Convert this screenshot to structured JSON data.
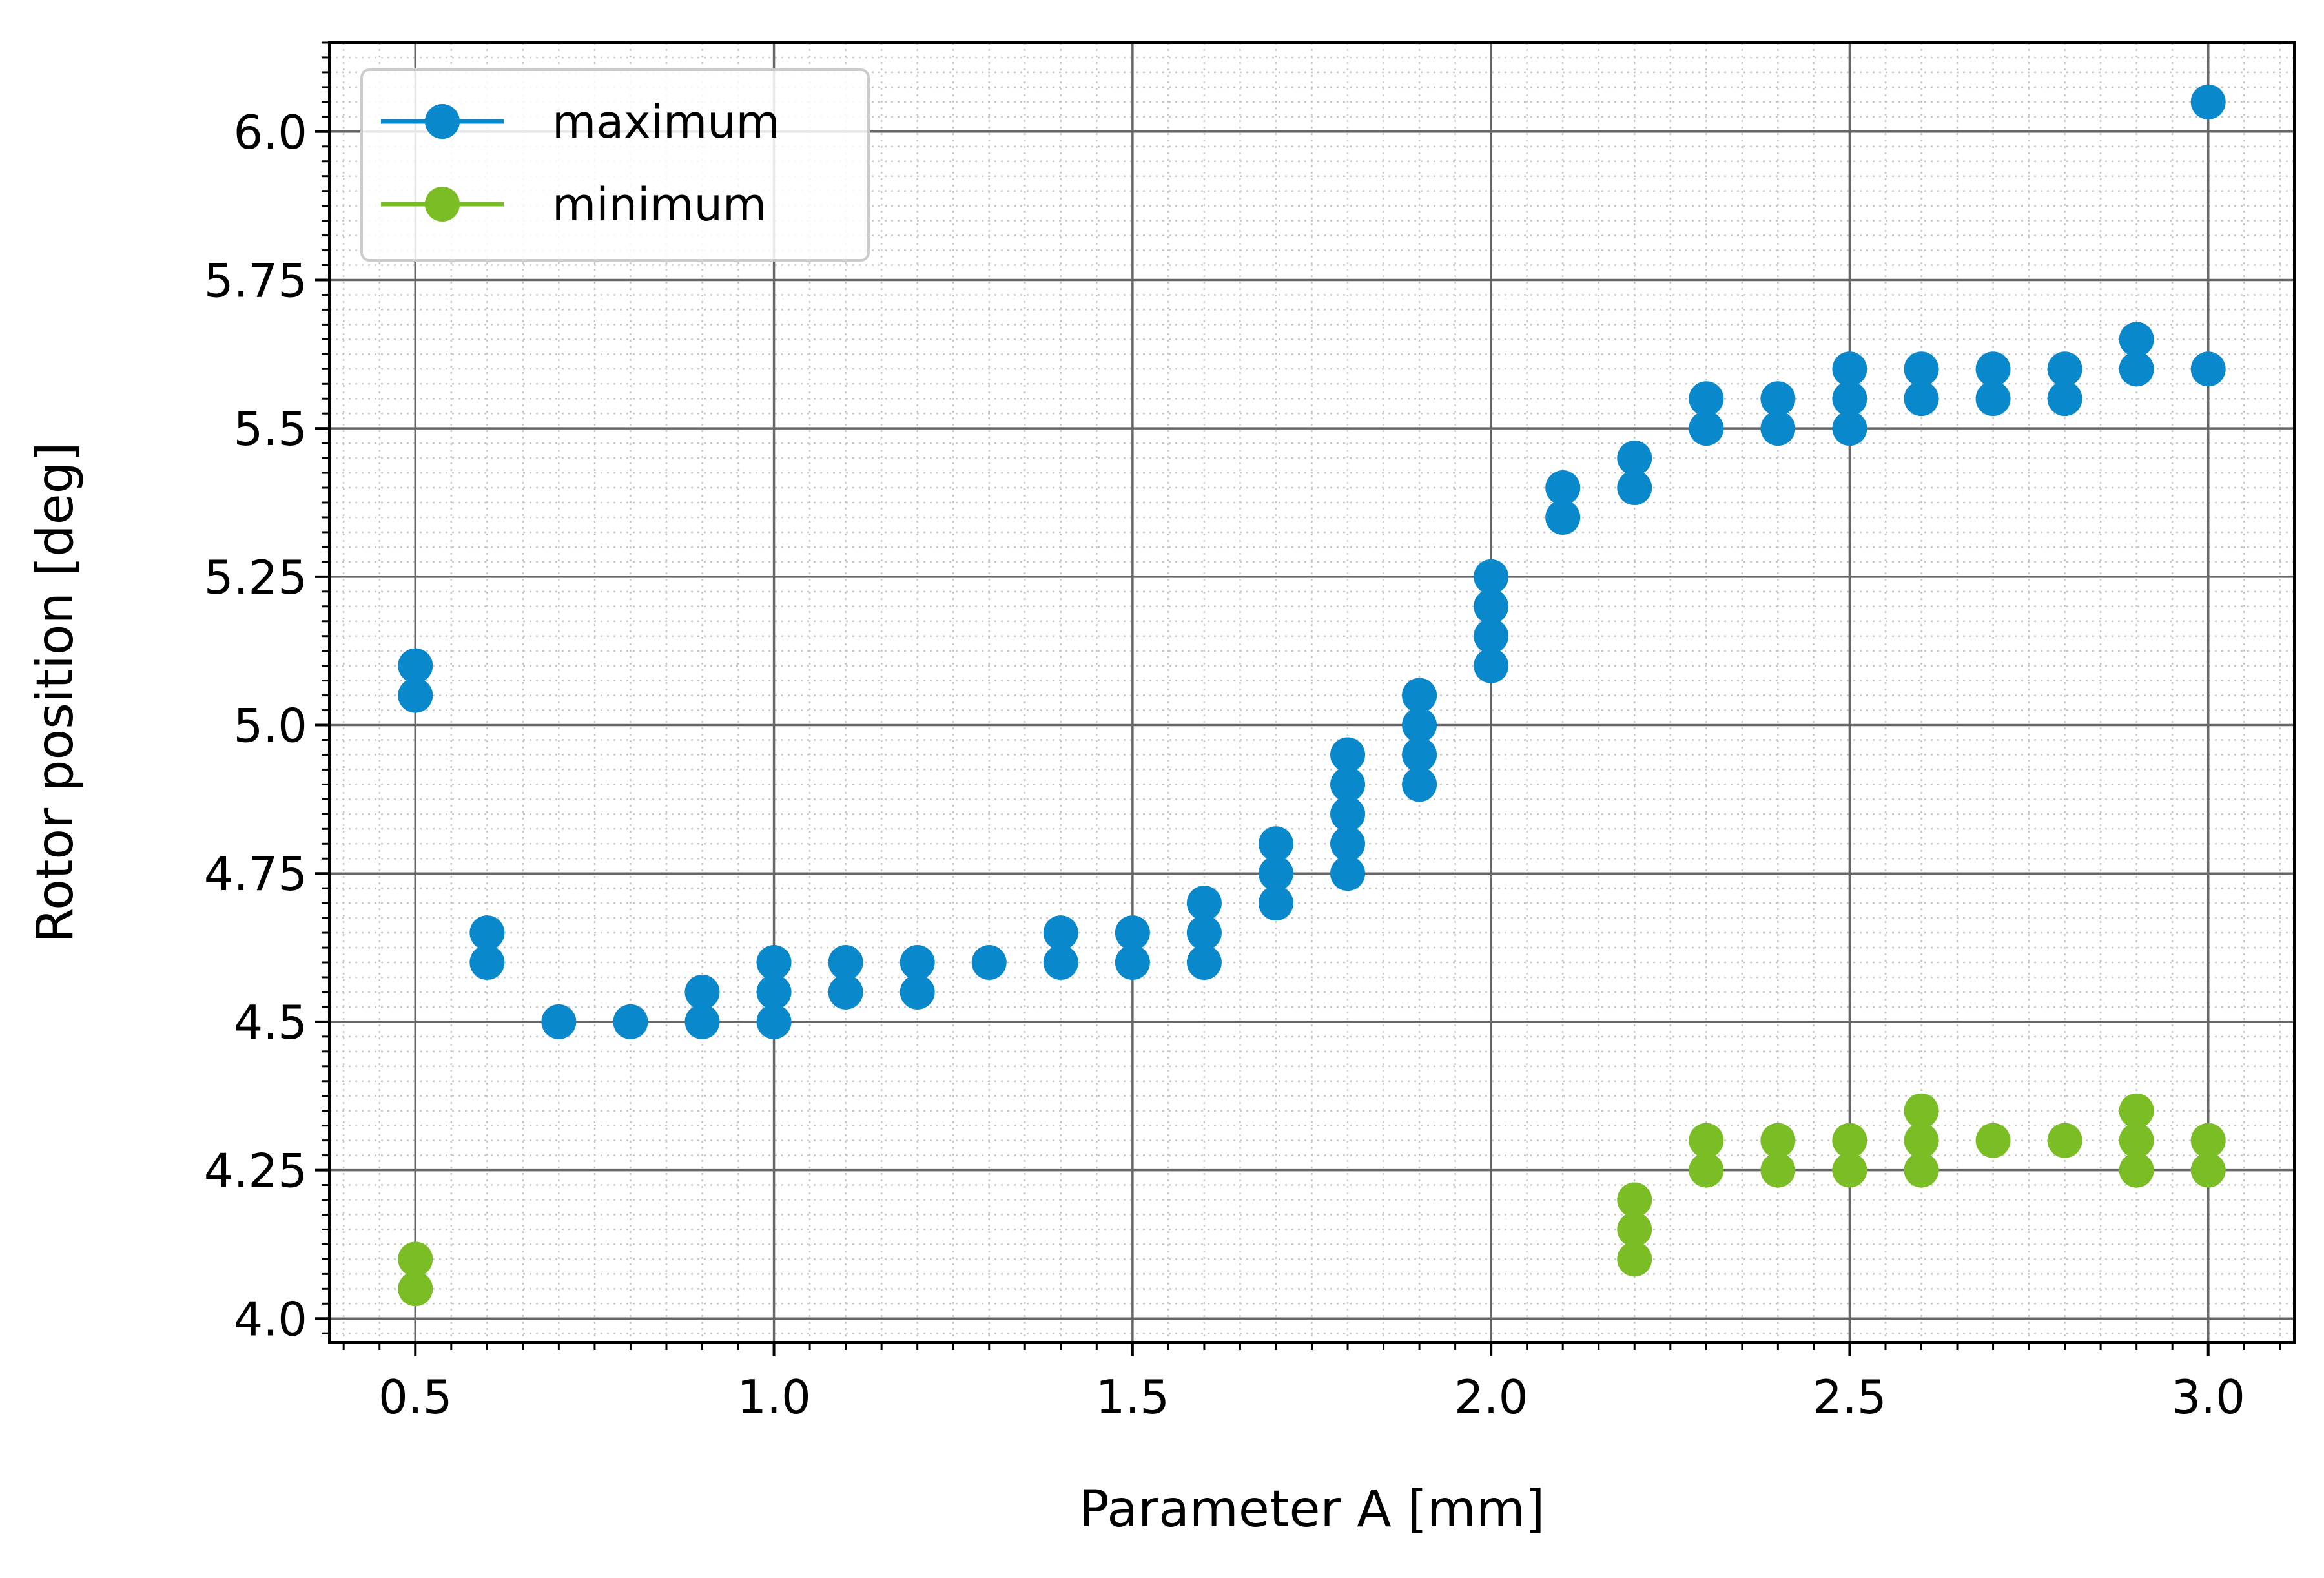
{
  "chart_data": {
    "type": "scatter",
    "xlabel": "Parameter A [mm]",
    "ylabel": "Rotor position [deg]",
    "xlim": [
      0.38,
      3.12
    ],
    "ylim": [
      3.96,
      6.15
    ],
    "x_ticks": [
      0.5,
      1.0,
      1.5,
      2.0,
      2.5,
      3.0
    ],
    "x_tick_labels": [
      "0.5",
      "1.0",
      "1.5",
      "2.0",
      "2.5",
      "3.0"
    ],
    "y_ticks": [
      4.0,
      4.25,
      4.5,
      4.75,
      5.0,
      5.25,
      5.5,
      5.75,
      6.0
    ],
    "y_tick_labels": [
      "4.0",
      "4.25",
      "4.5",
      "4.75",
      "5.0",
      "5.25",
      "5.5",
      "5.75",
      "6.0"
    ],
    "grid": "major and minor",
    "legend_position": "top-left",
    "series": [
      {
        "name": "maximum",
        "color": "#0a88cc",
        "points": [
          [
            0.5,
            5.05
          ],
          [
            0.5,
            5.1
          ],
          [
            0.6,
            4.6
          ],
          [
            0.6,
            4.65
          ],
          [
            0.7,
            4.5
          ],
          [
            0.8,
            4.5
          ],
          [
            0.9,
            4.5
          ],
          [
            0.9,
            4.55
          ],
          [
            1.0,
            4.5
          ],
          [
            1.0,
            4.55
          ],
          [
            1.0,
            4.6
          ],
          [
            1.1,
            4.55
          ],
          [
            1.1,
            4.6
          ],
          [
            1.2,
            4.55
          ],
          [
            1.2,
            4.6
          ],
          [
            1.3,
            4.6
          ],
          [
            1.4,
            4.6
          ],
          [
            1.4,
            4.65
          ],
          [
            1.5,
            4.6
          ],
          [
            1.5,
            4.65
          ],
          [
            1.6,
            4.6
          ],
          [
            1.6,
            4.65
          ],
          [
            1.6,
            4.7
          ],
          [
            1.7,
            4.7
          ],
          [
            1.7,
            4.75
          ],
          [
            1.7,
            4.8
          ],
          [
            1.8,
            4.75
          ],
          [
            1.8,
            4.8
          ],
          [
            1.8,
            4.85
          ],
          [
            1.8,
            4.9
          ],
          [
            1.8,
            4.95
          ],
          [
            1.9,
            4.9
          ],
          [
            1.9,
            4.95
          ],
          [
            1.9,
            5.0
          ],
          [
            1.9,
            5.05
          ],
          [
            2.0,
            5.1
          ],
          [
            2.0,
            5.15
          ],
          [
            2.0,
            5.2
          ],
          [
            2.0,
            5.25
          ],
          [
            2.1,
            5.35
          ],
          [
            2.1,
            5.4
          ],
          [
            2.2,
            5.4
          ],
          [
            2.2,
            5.45
          ],
          [
            2.3,
            5.5
          ],
          [
            2.3,
            5.55
          ],
          [
            2.4,
            5.5
          ],
          [
            2.4,
            5.55
          ],
          [
            2.5,
            5.5
          ],
          [
            2.5,
            5.55
          ],
          [
            2.5,
            5.6
          ],
          [
            2.6,
            5.55
          ],
          [
            2.6,
            5.6
          ],
          [
            2.7,
            5.55
          ],
          [
            2.7,
            5.6
          ],
          [
            2.8,
            5.55
          ],
          [
            2.8,
            5.6
          ],
          [
            2.9,
            5.6
          ],
          [
            2.9,
            5.65
          ],
          [
            3.0,
            5.6
          ],
          [
            3.0,
            6.05
          ]
        ]
      },
      {
        "name": "minimum",
        "color": "#7bbd24",
        "points": [
          [
            0.5,
            4.05
          ],
          [
            0.5,
            4.1
          ],
          [
            2.2,
            4.1
          ],
          [
            2.2,
            4.15
          ],
          [
            2.2,
            4.2
          ],
          [
            2.3,
            4.25
          ],
          [
            2.3,
            4.3
          ],
          [
            2.4,
            4.25
          ],
          [
            2.4,
            4.3
          ],
          [
            2.5,
            4.25
          ],
          [
            2.5,
            4.3
          ],
          [
            2.6,
            4.25
          ],
          [
            2.6,
            4.3
          ],
          [
            2.6,
            4.35
          ],
          [
            2.7,
            4.3
          ],
          [
            2.8,
            4.3
          ],
          [
            2.9,
            4.25
          ],
          [
            2.9,
            4.3
          ],
          [
            2.9,
            4.35
          ],
          [
            3.0,
            4.25
          ],
          [
            3.0,
            4.3
          ]
        ]
      }
    ]
  }
}
